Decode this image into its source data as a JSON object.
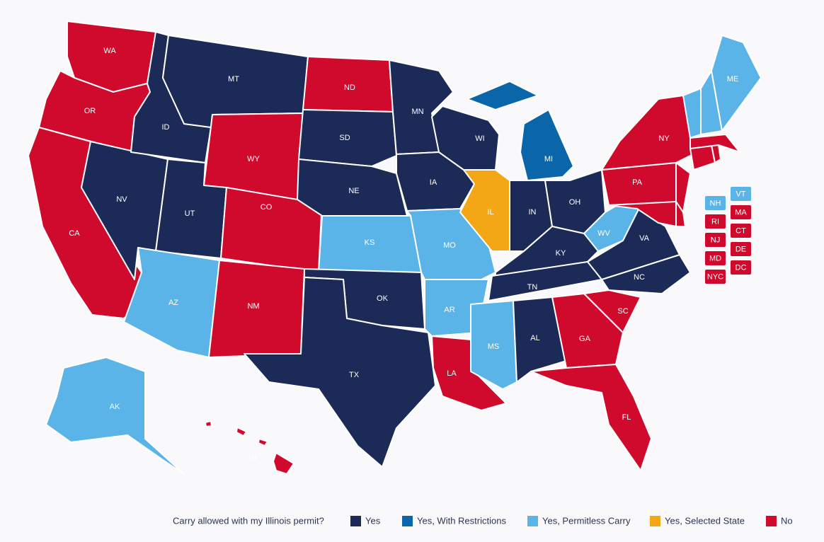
{
  "map": {
    "legend": {
      "title": "Carry allowed with my Illinois permit?",
      "items": [
        {
          "label": "Yes",
          "color": "#1b2a57"
        },
        {
          "label": "Yes, With Restrictions",
          "color": "#0b66a9"
        },
        {
          "label": "Yes, Permitless Carry",
          "color": "#5ab4e8"
        },
        {
          "label": "Yes, Selected State",
          "color": "#f3a616"
        },
        {
          "label": "No",
          "color": "#cf0a2c"
        }
      ]
    },
    "states": [
      {
        "label": "WA",
        "status": 4
      },
      {
        "label": "OR",
        "status": 4
      },
      {
        "label": "CA",
        "status": 4
      },
      {
        "label": "NV",
        "status": 0
      },
      {
        "label": "ID",
        "status": 0
      },
      {
        "label": "MT",
        "status": 0
      },
      {
        "label": "WY",
        "status": 4
      },
      {
        "label": "UT",
        "status": 0
      },
      {
        "label": "CO",
        "status": 4
      },
      {
        "label": "AZ",
        "status": 2
      },
      {
        "label": "NM",
        "status": 4
      },
      {
        "label": "ND",
        "status": 4
      },
      {
        "label": "SD",
        "status": 0
      },
      {
        "label": "NE",
        "status": 0
      },
      {
        "label": "KS",
        "status": 2
      },
      {
        "label": "OK",
        "status": 0
      },
      {
        "label": "TX",
        "status": 0
      },
      {
        "label": "MN",
        "status": 0
      },
      {
        "label": "IA",
        "status": 0
      },
      {
        "label": "MO",
        "status": 2
      },
      {
        "label": "AR",
        "status": 2
      },
      {
        "label": "LA",
        "status": 4
      },
      {
        "label": "WI",
        "status": 0
      },
      {
        "label": "IL",
        "status": 3
      },
      {
        "label": "MI",
        "status": 1
      },
      {
        "label": "IN",
        "status": 0
      },
      {
        "label": "OH",
        "status": 0
      },
      {
        "label": "KY",
        "status": 0
      },
      {
        "label": "TN",
        "status": 0
      },
      {
        "label": "MS",
        "status": 2
      },
      {
        "label": "AL",
        "status": 0
      },
      {
        "label": "GA",
        "status": 4
      },
      {
        "label": "FL",
        "status": 4
      },
      {
        "label": "SC",
        "status": 4
      },
      {
        "label": "NC",
        "status": 0
      },
      {
        "label": "VA",
        "status": 0
      },
      {
        "label": "WV",
        "status": 2
      },
      {
        "label": "PA",
        "status": 4
      },
      {
        "label": "NY",
        "status": 4
      },
      {
        "label": null,
        "status": 4
      },
      {
        "label": null,
        "status": 4
      },
      {
        "label": null,
        "status": 4
      },
      {
        "label": null,
        "status": 4
      },
      {
        "label": null,
        "status": 4
      },
      {
        "label": null,
        "status": 4
      },
      {
        "label": null,
        "status": 2
      },
      {
        "label": null,
        "status": 2
      },
      {
        "label": "ME",
        "status": 2
      },
      {
        "label": "AK",
        "status": 2
      },
      {
        "label": "HI",
        "status": 4
      }
    ],
    "callouts": [
      {
        "label": "NH",
        "status": 2
      },
      {
        "label": "VT",
        "status": 2
      },
      {
        "label": "RI",
        "status": 4
      },
      {
        "label": "MA",
        "status": 4
      },
      {
        "label": "NJ",
        "status": 4
      },
      {
        "label": "CT",
        "status": 4
      },
      {
        "label": "MD",
        "status": 4
      },
      {
        "label": "DE",
        "status": 4
      },
      {
        "label": "NYC",
        "status": 4
      },
      {
        "label": "DC",
        "status": 4
      }
    ]
  }
}
